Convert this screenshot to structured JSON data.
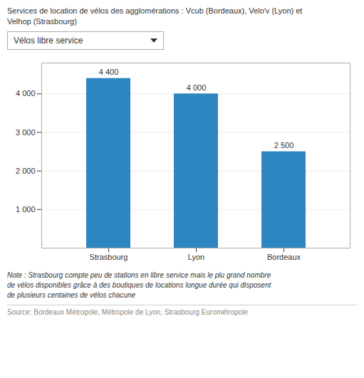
{
  "chart_data": {
    "type": "bar",
    "title": "Services de location de vélos des agglomérations : Vcub (Bordeaux), Velo'v (Lyon) et\nVelhop (Strasbourg)",
    "subtitle": "Vélos libre service",
    "categories": [
      "Strasbourg",
      "Lyon",
      "Bordeaux"
    ],
    "values": [
      4400,
      4000,
      2500
    ],
    "value_labels": [
      "4 400",
      "4 000",
      "2 500"
    ],
    "data_labels": true,
    "color": "#2E86C1",
    "ylim": [
      0,
      4800
    ],
    "yticks": [
      {
        "value": 1000,
        "label": "1 000"
      },
      {
        "value": 2000,
        "label": "2 000"
      },
      {
        "value": 3000,
        "label": "3 000"
      },
      {
        "value": 4000,
        "label": "4 000"
      }
    ],
    "grid": true,
    "annotations": [
      "Note : Strasbourg compte peu de stations en libre service mais le plu grand nombre\nde vélos disponibles grâce à des boutiques de locations longue durée qui disposent\nde plusieurs centaines de vélos chacune",
      "Source: Bordeaux Métropole, Métropole de Lyon, Strasbourg Eurométropole"
    ]
  }
}
